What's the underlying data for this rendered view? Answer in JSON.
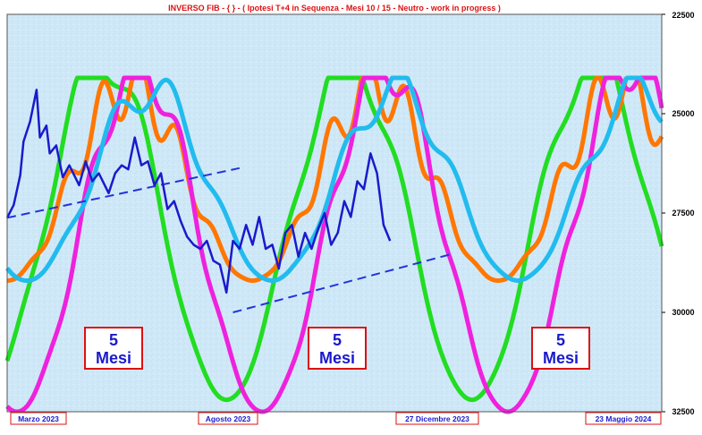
{
  "chart_data": {
    "type": "line",
    "title": "INVERSO FIB  -  { } - ( Ipotesi T+4 in Sequenza  -  Mesi 10 / 15  -  Neutro  -   work in progress )",
    "y_axis": {
      "ticks": [
        "22500",
        "25000",
        "27500",
        "30000",
        "32500"
      ],
      "range": [
        22500,
        32500
      ],
      "inverted": true,
      "position": "right"
    },
    "x_axis": {
      "labels": [
        "Marzo  2023",
        "Agosto 2023",
        "27  Dicembre 2023",
        "23  Maggio 2024"
      ]
    },
    "annotations": [
      {
        "line1": "5",
        "line2": "Mesi"
      },
      {
        "line1": "5",
        "line2": "Mesi"
      },
      {
        "line1": "5",
        "line2": "Mesi"
      }
    ],
    "trendlines": [
      {
        "from": [
          0.0,
          27620
        ],
        "to": [
          0.355,
          26370
        ]
      },
      {
        "from": [
          0.345,
          30000
        ],
        "to": [
          0.675,
          28550
        ]
      }
    ],
    "cycles": [
      {
        "color": "#22dd22",
        "start": 32200,
        "base": 24150,
        "amplitude": 3000,
        "ripple": 1100,
        "ripple_period": 0.1,
        "phase": -0.04
      },
      {
        "color": "#ff7700",
        "start": 29200,
        "base": 25100,
        "amplitude": 2050,
        "ripple": 1550,
        "ripple_period": 0.058,
        "phase": 0.0
      },
      {
        "color": "#ee22dd",
        "start": 32500,
        "base": 24400,
        "amplitude": 2950,
        "ripple": 1250,
        "ripple_period": 0.072,
        "phase": 0.015
      },
      {
        "color": "#22bbee",
        "start": 29200,
        "base": 24900,
        "amplitude": 1650,
        "ripple": 1050,
        "ripple_period": 0.088,
        "phase": 0.03
      }
    ],
    "price_series": {
      "color": "#1a1acc",
      "points": [
        [
          0.0,
          27620
        ],
        [
          0.01,
          27300
        ],
        [
          0.02,
          26550
        ],
        [
          0.025,
          25700
        ],
        [
          0.035,
          25200
        ],
        [
          0.045,
          24400
        ],
        [
          0.05,
          25600
        ],
        [
          0.06,
          25300
        ],
        [
          0.065,
          26000
        ],
        [
          0.075,
          25800
        ],
        [
          0.085,
          26600
        ],
        [
          0.095,
          26300
        ],
        [
          0.11,
          26800
        ],
        [
          0.12,
          26200
        ],
        [
          0.13,
          26700
        ],
        [
          0.14,
          26500
        ],
        [
          0.155,
          27000
        ],
        [
          0.165,
          26500
        ],
        [
          0.175,
          26300
        ],
        [
          0.185,
          26400
        ],
        [
          0.195,
          25600
        ],
        [
          0.205,
          26300
        ],
        [
          0.215,
          26200
        ],
        [
          0.225,
          26800
        ],
        [
          0.235,
          26500
        ],
        [
          0.245,
          27400
        ],
        [
          0.255,
          27200
        ],
        [
          0.265,
          27700
        ],
        [
          0.275,
          28100
        ],
        [
          0.285,
          28300
        ],
        [
          0.295,
          28400
        ],
        [
          0.305,
          28200
        ],
        [
          0.315,
          28700
        ],
        [
          0.325,
          28800
        ],
        [
          0.335,
          29500
        ],
        [
          0.345,
          28200
        ],
        [
          0.355,
          28400
        ],
        [
          0.365,
          27800
        ],
        [
          0.375,
          28300
        ],
        [
          0.385,
          27600
        ],
        [
          0.395,
          28400
        ],
        [
          0.405,
          28300
        ],
        [
          0.415,
          28900
        ],
        [
          0.425,
          28000
        ],
        [
          0.435,
          27800
        ],
        [
          0.445,
          28600
        ],
        [
          0.455,
          28000
        ],
        [
          0.465,
          28400
        ],
        [
          0.475,
          27900
        ],
        [
          0.485,
          27500
        ],
        [
          0.495,
          28300
        ],
        [
          0.505,
          28000
        ],
        [
          0.515,
          27200
        ],
        [
          0.525,
          27600
        ],
        [
          0.535,
          26700
        ],
        [
          0.545,
          26900
        ],
        [
          0.555,
          26000
        ],
        [
          0.565,
          26500
        ],
        [
          0.575,
          27800
        ],
        [
          0.585,
          28200
        ]
      ]
    }
  }
}
